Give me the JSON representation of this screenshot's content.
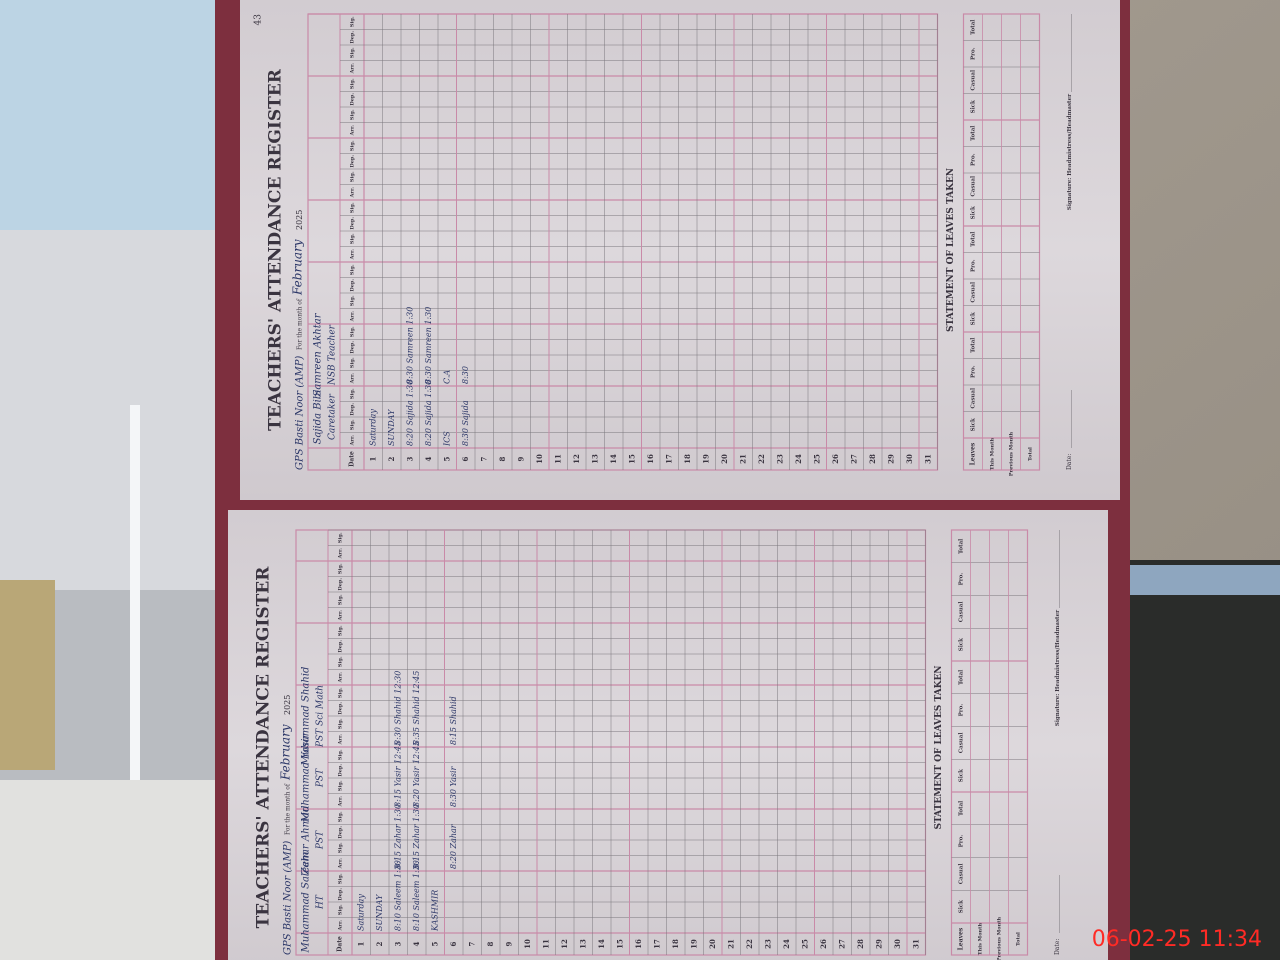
{
  "photo_timestamp": "06-02-25  11:34",
  "pages": [
    {
      "page_number": "43",
      "title": "TEACHERS' ATTENDANCE REGISTER",
      "school": "GPS Basti Noor (AMP)",
      "month_label": "For the month of",
      "month": "February",
      "year": "2025",
      "column_headers": [
        "Date",
        "Arr.",
        "Sig.",
        "Dep.",
        "Sig."
      ],
      "days": [
        1,
        2,
        3,
        4,
        5,
        6,
        7,
        8,
        9,
        10,
        11,
        12,
        13,
        14,
        15,
        16,
        17,
        18,
        19,
        20,
        21,
        22,
        23,
        24,
        25,
        26,
        27,
        28,
        29,
        30,
        31
      ],
      "teachers": [
        {
          "name": "Sajida Bibi",
          "designation": "Caretaker",
          "entries": [
            {
              "day": 1,
              "text": "Saturday"
            },
            {
              "day": 2,
              "text": "SUNDAY"
            },
            {
              "day": 3,
              "text": "8:20 Sajida 1:30"
            },
            {
              "day": 4,
              "text": "8:20 Sajida 1:30"
            },
            {
              "day": 5,
              "text": "ICS"
            },
            {
              "day": 6,
              "text": "8:30 Sajida"
            }
          ]
        },
        {
          "name": "Samreen Akhtar",
          "designation": "NSB Teacher",
          "entries": [
            {
              "day": 3,
              "text": "8:30 Samreen 1:30"
            },
            {
              "day": 4,
              "text": "8:30 Samreen 1:30"
            },
            {
              "day": 5,
              "text": "C.A"
            },
            {
              "day": 6,
              "text": "8:30"
            }
          ]
        }
      ],
      "statement": {
        "title": "STATEMENT OF LEAVES TAKEN",
        "headers": [
          "Leaves",
          "Sick",
          "Casual",
          "Pro.",
          "Total"
        ],
        "rows": [
          "This Month",
          "Previous Month",
          "Total"
        ]
      },
      "signature_label": "Signature: Headmistress/Headmaster",
      "date_label": "Date:"
    },
    {
      "title": "TEACHERS' ATTENDANCE REGISTER",
      "school": "GPS Basti Noor (AMP)",
      "month_label": "For the month of",
      "month": "February",
      "year": "2025",
      "column_headers": [
        "Date",
        "Arr.",
        "Sig.",
        "Dep.",
        "Sig."
      ],
      "days": [
        1,
        2,
        3,
        4,
        5,
        6,
        7,
        8,
        9,
        10,
        11,
        12,
        13,
        14,
        15,
        16,
        17,
        18,
        19,
        20,
        21,
        22,
        23,
        24,
        25,
        26,
        27,
        28,
        29,
        30,
        31
      ],
      "teachers": [
        {
          "name": "Muhammad Saleem",
          "designation": "HT",
          "entries": [
            {
              "day": 1,
              "text": "Saturday"
            },
            {
              "day": 2,
              "text": "SUNDAY"
            },
            {
              "day": 3,
              "text": "8:10 Saleem 1:30"
            },
            {
              "day": 4,
              "text": "8:10 Saleem 1:30"
            },
            {
              "day": 5,
              "text": "KASHMIR"
            }
          ]
        },
        {
          "name": "Zahar Ahmad",
          "designation": "PST",
          "entries": [
            {
              "day": 3,
              "text": "8:15 Zahar 1:30"
            },
            {
              "day": 4,
              "text": "8:15 Zahar 1:30"
            },
            {
              "day": 6,
              "text": "8:20 Zahar"
            }
          ]
        },
        {
          "name": "Muhammad Yasir",
          "designation": "PST",
          "entries": [
            {
              "day": 3,
              "text": "8:15 Yasir 12:45"
            },
            {
              "day": 4,
              "text": "8:20 Yasir 12:45"
            },
            {
              "day": 6,
              "text": "8:30 Yasir"
            }
          ]
        },
        {
          "name": "Muhammad Shahid",
          "designation": "PST Sci Math",
          "entries": [
            {
              "day": 3,
              "text": "8:30 Shahid 12:30"
            },
            {
              "day": 4,
              "text": "8:35 Shahid 12:45"
            },
            {
              "day": 6,
              "text": "8:15 Shahid"
            }
          ]
        }
      ],
      "statement": {
        "title": "STATEMENT OF LEAVES TAKEN",
        "headers": [
          "Leaves",
          "Sick",
          "Casual",
          "Pro.",
          "Total"
        ],
        "rows": [
          "This Month",
          "Previous Month",
          "Total"
        ]
      },
      "signature_label": "Signature: Headmistress/Headmaster",
      "date_label": "Date:"
    }
  ]
}
